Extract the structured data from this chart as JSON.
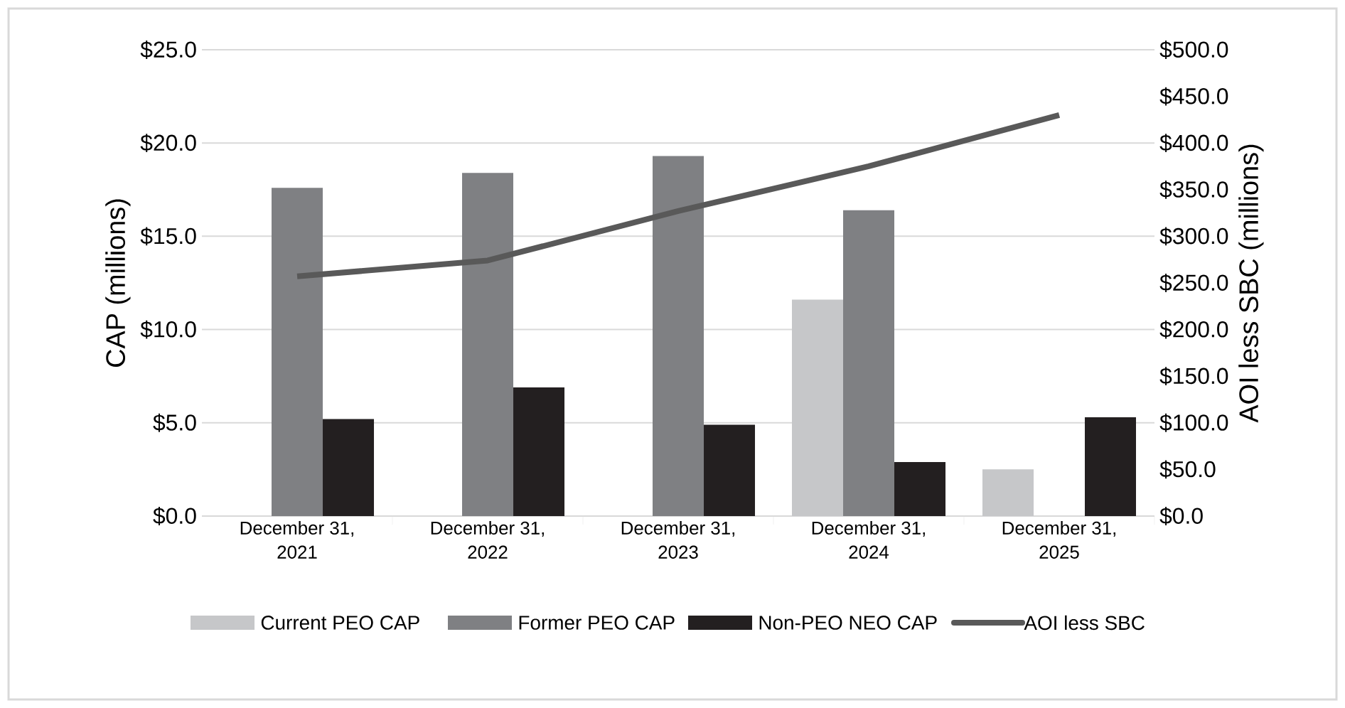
{
  "chart_data": {
    "type": "bar",
    "categories": [
      "December 31, 2021",
      "December 31, 2022",
      "December 31, 2023",
      "December 31, 2024",
      "December 31, 2025"
    ],
    "series": [
      {
        "name": "Current PEO CAP",
        "color": "#c6c7c9",
        "values": [
          null,
          null,
          null,
          11.6,
          2.5
        ]
      },
      {
        "name": "Former PEO CAP",
        "color": "#7f8083",
        "values": [
          17.6,
          18.4,
          19.3,
          16.4,
          null
        ]
      },
      {
        "name": "Non-PEO NEO CAP",
        "color": "#231f20",
        "values": [
          5.2,
          6.9,
          4.9,
          2.9,
          5.3
        ]
      },
      {
        "name": "AOI less SBC",
        "color": "#595959",
        "type": "line",
        "axis": "y2",
        "values": [
          257,
          274,
          327,
          375,
          430
        ]
      }
    ],
    "ylabel": "CAP (millions)",
    "y2label": "AOI less SBC (millions)",
    "ylim": [
      0,
      25
    ],
    "yticks": [
      {
        "value": 0,
        "label": "$0.0"
      },
      {
        "value": 5,
        "label": "$5.0"
      },
      {
        "value": 10,
        "label": "$10.0"
      },
      {
        "value": 15,
        "label": "$15.0"
      },
      {
        "value": 20,
        "label": "$20.0"
      },
      {
        "value": 25,
        "label": "$25.0"
      }
    ],
    "y2lim": [
      0,
      500
    ],
    "y2ticks": [
      {
        "value": 0,
        "label": "$0.0"
      },
      {
        "value": 50,
        "label": "$50.0"
      },
      {
        "value": 100,
        "label": "$100.0"
      },
      {
        "value": 150,
        "label": "$150.0"
      },
      {
        "value": 200,
        "label": "$200.0"
      },
      {
        "value": 250,
        "label": "$250.0"
      },
      {
        "value": 300,
        "label": "$300.0"
      },
      {
        "value": 350,
        "label": "$350.0"
      },
      {
        "value": 400,
        "label": "$400.0"
      },
      {
        "value": 450,
        "label": "$450.0"
      },
      {
        "value": 500,
        "label": "$500.0"
      }
    ],
    "grid": "y",
    "legend": "bottom"
  }
}
